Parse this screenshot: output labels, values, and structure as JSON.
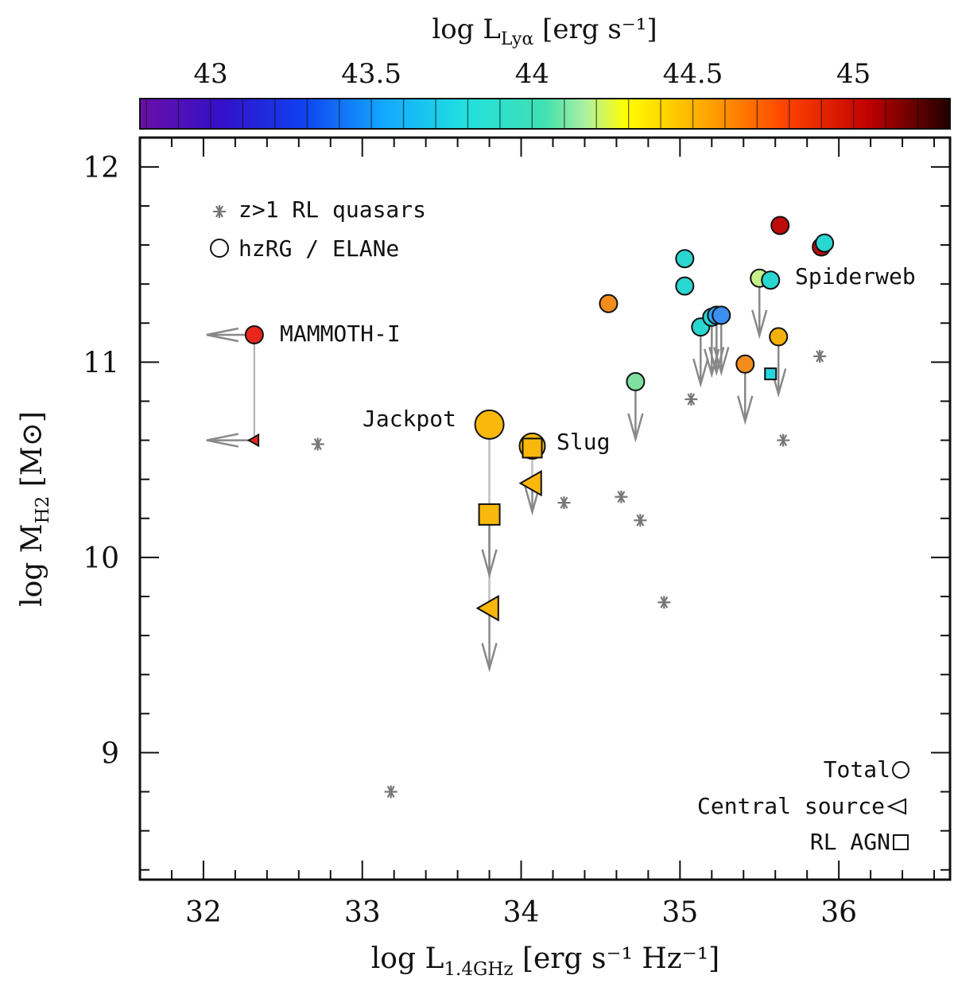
{
  "chart_data": {
    "type": "scatter",
    "xlabel": {
      "main": "log L",
      "sub": "1.4GHz",
      "rest": " [erg s⁻¹ Hz⁻¹]"
    },
    "ylabel": {
      "main": "log M",
      "sub": "H2",
      "rest": "  [M⊙]"
    },
    "colorbar_label": {
      "main": "log L",
      "sub": "Lyα",
      "rest": "  [erg s⁻¹]"
    },
    "xlim": [
      31.6,
      36.7
    ],
    "ylim": [
      8.35,
      12.15
    ],
    "cbar_lim": [
      42.78,
      45.3
    ],
    "x_ticks": [
      32,
      33,
      34,
      35,
      36
    ],
    "y_ticks": [
      9,
      10,
      11,
      12
    ],
    "cbar_ticks": [
      43,
      43.5,
      44,
      44.5,
      45
    ],
    "x_tick_labels": [
      "32",
      "33",
      "34",
      "35",
      "36"
    ],
    "y_tick_labels": [
      "9",
      "10",
      "11",
      "12"
    ],
    "cbar_tick_labels": [
      "43",
      "43.5",
      "44",
      "44.5",
      "45"
    ],
    "legend": {
      "position": "top-left",
      "quasars": "z>1 RL quasars",
      "circles": "hzRG / ELANe"
    },
    "marker_key": {
      "position": "bottom-right",
      "total": "Total",
      "central": "Central source",
      "rlagn": "RL AGN"
    },
    "annotations": {
      "mammoth": "MAMMOTH-I",
      "jackpot": "Jackpot",
      "slug": "Slug",
      "spiderweb": "Spiderweb"
    },
    "series": [
      {
        "name": "z>1 RL quasars",
        "marker": "asterisk",
        "points": [
          {
            "x": 32.72,
            "y": 10.58
          },
          {
            "x": 33.18,
            "y": 8.8
          },
          {
            "x": 34.27,
            "y": 10.28
          },
          {
            "x": 34.63,
            "y": 10.31
          },
          {
            "x": 34.75,
            "y": 10.19
          },
          {
            "x": 34.9,
            "y": 9.77
          },
          {
            "x": 35.07,
            "y": 10.81
          },
          {
            "x": 35.65,
            "y": 10.6
          },
          {
            "x": 35.88,
            "y": 11.03
          }
        ]
      },
      {
        "name": "hzRG / ELANe",
        "marker": "circle",
        "points": [
          {
            "x": 34.55,
            "y": 11.3,
            "color": "#f28c1c",
            "upper_limit": false
          },
          {
            "x": 34.72,
            "y": 10.9,
            "color": "#7fe0a0",
            "upper_limit": true
          },
          {
            "x": 35.03,
            "y": 11.53,
            "color": "#2ad6d0",
            "upper_limit": false
          },
          {
            "x": 35.03,
            "y": 11.39,
            "color": "#2ad6d0",
            "upper_limit": false
          },
          {
            "x": 35.13,
            "y": 11.18,
            "color": "#2ad6d0",
            "upper_limit": true
          },
          {
            "x": 35.2,
            "y": 11.23,
            "color": "#2ad6d0",
            "upper_limit": true
          },
          {
            "x": 35.23,
            "y": 11.24,
            "color": "#30a0f0",
            "upper_limit": true
          },
          {
            "x": 35.26,
            "y": 11.24,
            "color": "#3a8ff0",
            "upper_limit": true
          },
          {
            "x": 35.41,
            "y": 10.99,
            "color": "#f28c1c",
            "upper_limit": true
          },
          {
            "x": 35.5,
            "y": 11.43,
            "color": "#c6f08a",
            "upper_limit": true
          },
          {
            "x": 35.57,
            "y": 11.42,
            "color": "#2ad6d0",
            "upper_limit": false
          },
          {
            "x": 35.62,
            "y": 11.13,
            "color": "#f5b10a",
            "upper_limit": true
          },
          {
            "x": 35.63,
            "y": 11.7,
            "color": "#c00b0b",
            "upper_limit": false
          },
          {
            "x": 35.89,
            "y": 11.59,
            "color": "#b50d0d",
            "upper_limit": false
          },
          {
            "x": 35.91,
            "y": 11.61,
            "color": "#2ad6d0",
            "upper_limit": false
          }
        ]
      },
      {
        "name": "MAMMOTH-I",
        "color": "#e8261b",
        "points": [
          {
            "marker": "circle",
            "x": 32.32,
            "y": 11.14,
            "upper_limit": "x"
          },
          {
            "marker": "triangle",
            "x": 32.32,
            "y": 10.6,
            "upper_limit": "x"
          }
        ]
      },
      {
        "name": "Jackpot",
        "color": "#fbb80c",
        "points": [
          {
            "marker": "circle",
            "x": 33.8,
            "y": 10.68,
            "upper_limit": false
          },
          {
            "marker": "square",
            "x": 33.8,
            "y": 10.22,
            "upper_limit": true
          },
          {
            "marker": "triangle",
            "x": 33.8,
            "y": 9.74,
            "upper_limit": true
          }
        ]
      },
      {
        "name": "Slug",
        "color": "#fbb80c",
        "points": [
          {
            "marker": "circle",
            "x": 34.07,
            "y": 10.57,
            "upper_limit": false
          },
          {
            "marker": "square",
            "x": 34.07,
            "y": 10.56,
            "upper_limit": false
          },
          {
            "marker": "triangle",
            "x": 34.07,
            "y": 10.38,
            "upper_limit": true
          }
        ]
      },
      {
        "name": "Spiderweb RL AGN",
        "color": "#25d6e0",
        "points": [
          {
            "marker": "square",
            "x": 35.57,
            "y": 10.94,
            "upper_limit": false
          }
        ]
      }
    ]
  }
}
